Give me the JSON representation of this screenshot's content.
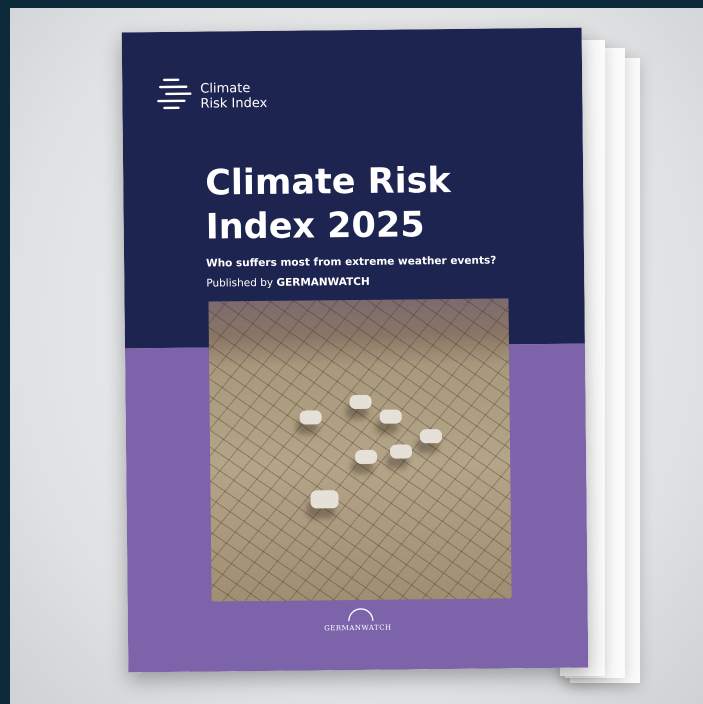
{
  "logo": {
    "line1": "Climate",
    "line2": "Risk Index"
  },
  "title": {
    "line1": "Climate Risk",
    "line2": "Index 2025"
  },
  "subtitle": "Who suffers most from extreme weather events?",
  "publisher": {
    "prefix": "Published by",
    "name": "GERMANWATCH"
  },
  "footer_logo": "GERMANWATCH"
}
